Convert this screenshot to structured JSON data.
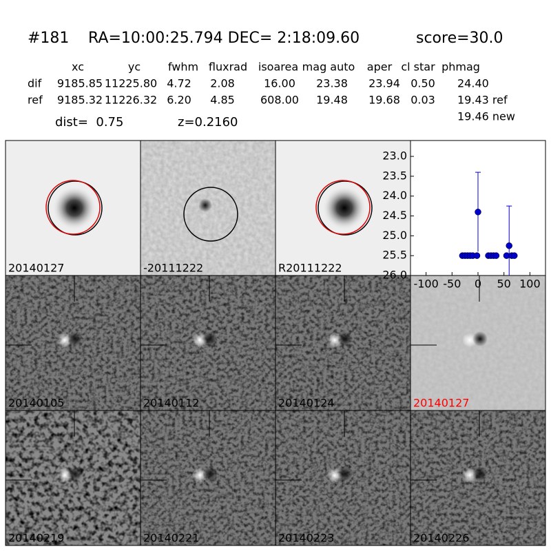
{
  "header": {
    "id": "#181",
    "coords": "RA=10:00:25.794 DEC= 2:18:09.60",
    "score": "score=30.0"
  },
  "table": {
    "columns": [
      "xc",
      "yc",
      "fwhm",
      "fluxrad",
      "isoarea",
      "mag auto",
      "aper",
      "cl star",
      "phmag"
    ],
    "rows": [
      {
        "label": "dif",
        "cells": [
          "9185.85",
          "11225.80",
          "4.72",
          "2.08",
          "16.00",
          "23.38",
          "23.94",
          "0.50",
          "24.40"
        ]
      },
      {
        "label": "ref",
        "cells": [
          "9185.32",
          "11226.32",
          "6.20",
          "4.85",
          "608.00",
          "19.48",
          "19.68",
          "0.03",
          "19.43 ref"
        ]
      }
    ],
    "phmag_new": "19.46 new"
  },
  "info": {
    "dist": "dist=  0.75",
    "z": "z=0.2160"
  },
  "panels": [
    {
      "label": "20140127",
      "kind": "ref"
    },
    {
      "label": "-20111222",
      "kind": "diff"
    },
    {
      "label": "R20111222",
      "kind": "ref"
    },
    null,
    {
      "label": "20140105",
      "kind": "stamp"
    },
    {
      "label": "20140112",
      "kind": "stamp"
    },
    {
      "label": "20140124",
      "kind": "stamp"
    },
    {
      "label": "20140127",
      "kind": "light",
      "label_color": "#ff0000"
    },
    {
      "label": "20140219",
      "kind": "noisy"
    },
    {
      "label": "20140221",
      "kind": "stamp"
    },
    {
      "label": "20140223",
      "kind": "stamp"
    },
    {
      "label": "20140226",
      "kind": "stamp"
    }
  ],
  "chart_data": {
    "type": "scatter",
    "color": "#0000cc",
    "x": [
      -30,
      -25,
      -20,
      -15,
      -10,
      -2,
      0,
      20,
      25,
      30,
      35,
      55,
      60,
      65,
      70
    ],
    "values": [
      25.5,
      25.5,
      25.5,
      25.5,
      25.5,
      25.5,
      24.4,
      25.5,
      25.5,
      25.5,
      25.5,
      25.5,
      25.25,
      25.5,
      25.5
    ],
    "errors": [
      null,
      null,
      null,
      null,
      null,
      null,
      1.0,
      null,
      null,
      null,
      null,
      null,
      1.0,
      null,
      null
    ],
    "xlim": [
      -130,
      130
    ],
    "xticks": [
      -100,
      -50,
      0,
      50,
      100
    ],
    "ylim": [
      26.0,
      22.6
    ],
    "yticks": [
      {
        "value": 23.0,
        "label": "23.0"
      },
      {
        "value": 23.5,
        "label": "23.5"
      },
      {
        "value": 24.0,
        "label": "24.0"
      },
      {
        "value": 24.5,
        "label": "24.5"
      },
      {
        "value": 25.0,
        "label": "25.0"
      },
      {
        "value": 25.5,
        "label": "25.5"
      },
      {
        "value": 26.0,
        "label": "26.0"
      }
    ]
  }
}
